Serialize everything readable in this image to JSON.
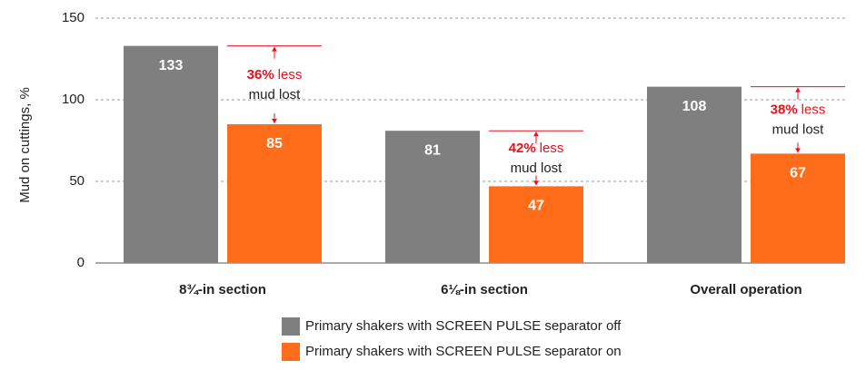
{
  "chart_data": {
    "type": "bar",
    "ylabel": "Mud on cuttings, %",
    "categories": [
      "8¾-in section",
      "6⅛-in section",
      "Overall operation"
    ],
    "series": [
      {
        "name": "Primary shakers with SCREEN PULSE separator off",
        "color": "#7f7f80",
        "values": [
          133,
          81,
          108
        ]
      },
      {
        "name": "Primary shakers with SCREEN PULSE separator on",
        "color": "#ff6c1a",
        "values": [
          85,
          47,
          67
        ]
      }
    ],
    "annotations": [
      {
        "emphasis": "36%",
        "text": [
          "less",
          "mud lost"
        ]
      },
      {
        "emphasis": "42%",
        "text": [
          "less",
          "mud lost"
        ]
      },
      {
        "emphasis": "38%",
        "text": [
          "less",
          "mud lost"
        ]
      }
    ],
    "annotation_color": "#e8101e",
    "ylim": [
      0,
      150
    ],
    "yticks": [
      0,
      50,
      100,
      150
    ],
    "grid": true,
    "legend": "bottom"
  }
}
